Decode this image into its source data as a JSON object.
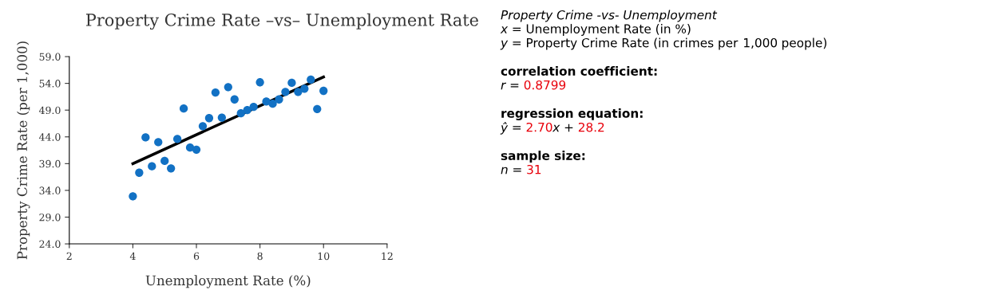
{
  "chart_data": {
    "type": "scatter",
    "title": "Property Crime Rate –vs– Unemployment Rate",
    "xlabel": "Unemployment Rate (%)",
    "ylabel": "Property Crime Rate (per 1,000)",
    "xlim": [
      2,
      12
    ],
    "xticks": [
      2,
      4,
      6,
      8,
      10,
      12
    ],
    "ylim": [
      24,
      59
    ],
    "yticks": [
      {
        "value": 24,
        "label": "24.0"
      },
      {
        "value": 29,
        "label": "29.0"
      },
      {
        "value": 34,
        "label": "34.0"
      },
      {
        "value": 39,
        "label": "39.0"
      },
      {
        "value": 44,
        "label": "44.0"
      },
      {
        "value": 49,
        "label": "49.0"
      },
      {
        "value": 54,
        "label": "54.0"
      },
      {
        "value": 59,
        "label": "59.0"
      }
    ],
    "grid": false,
    "legend": false,
    "marker": "circle",
    "series": [
      {
        "color": "#1271c4",
        "x": [
          4.0,
          4.2,
          4.4,
          4.6,
          4.8,
          5.0,
          5.2,
          5.4,
          5.6,
          5.8,
          6.0,
          6.2,
          6.4,
          6.6,
          6.8,
          7.0,
          7.2,
          7.4,
          7.6,
          7.8,
          8.0,
          8.2,
          8.4,
          8.6,
          8.8,
          9.0,
          9.2,
          9.4,
          9.6,
          9.8,
          10.0
        ],
        "values": [
          32.9,
          37.3,
          43.9,
          38.5,
          43.0,
          39.5,
          38.1,
          43.6,
          49.3,
          42.0,
          41.6,
          46.0,
          47.5,
          52.3,
          47.6,
          53.3,
          51.0,
          48.4,
          49.0,
          49.6,
          54.2,
          50.6,
          50.2,
          51.0,
          52.4,
          54.1,
          52.4,
          53.0,
          54.7,
          49.2,
          52.6
        ]
      },
      {
        "type": "line",
        "marker": "none",
        "color": "#000000",
        "x": [
          4,
          10
        ],
        "values": [
          39.0,
          55.2
        ]
      }
    ],
    "annotations": [
      "Property Crime -vs- Unemployment",
      "x = Unemployment Rate (in %)",
      "y = Property Crime Rate (in crimes per 1,000 people)",
      "correlation coefficient:",
      "r = 0.8799",
      "regression equation:",
      "ŷ = 2.70x + 28.2",
      "sample size:",
      "n = 31"
    ]
  }
}
